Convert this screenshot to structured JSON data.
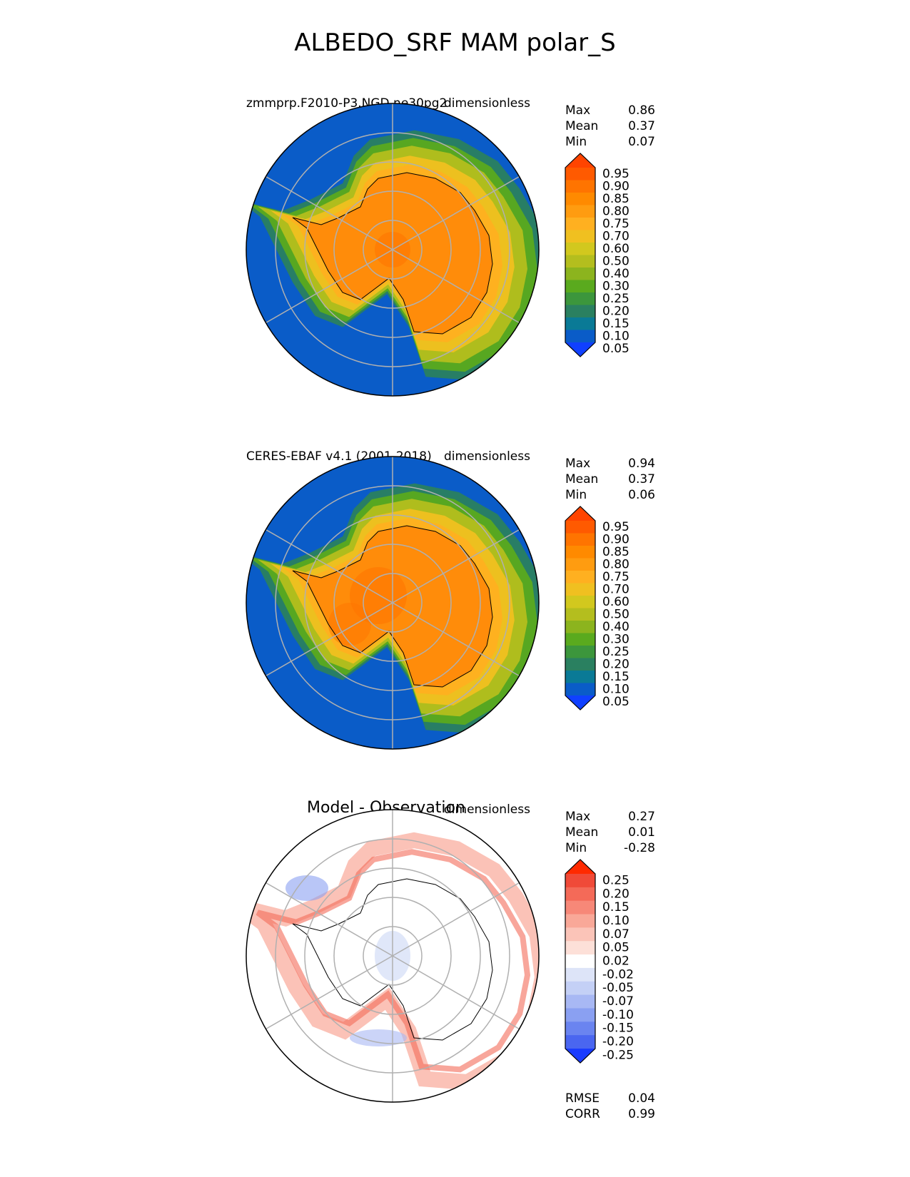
{
  "title": "ALBEDO_SRF MAM polar_S",
  "colors": {
    "ocean_blue": "#0a5cc8",
    "ice_orange": "#ff8c0a",
    "grid": "#b0b0b0"
  },
  "chart_data": [
    {
      "type": "polar-contour",
      "projection": "south-polar-stereographic",
      "left_label": "zmmprp.F2010-P3.NGD.ne30pg2",
      "right_label": "dimensionless",
      "center_label": "",
      "stats": [
        {
          "name": "Max",
          "value": "0.86"
        },
        {
          "name": "Mean",
          "value": "0.37"
        },
        {
          "name": "Min",
          "value": "0.07"
        }
      ],
      "colorbar": {
        "levels": [
          "0.95",
          "0.90",
          "0.85",
          "0.80",
          "0.75",
          "0.70",
          "0.60",
          "0.50",
          "0.40",
          "0.30",
          "0.25",
          "0.20",
          "0.15",
          "0.10",
          "0.05"
        ],
        "colors": [
          "#ff4400",
          "#ff5a00",
          "#ff7400",
          "#ff8a00",
          "#ff9c10",
          "#ffb020",
          "#f0c020",
          "#d2c81e",
          "#b4be1e",
          "#8cb41e",
          "#5aaa1e",
          "#3c963c",
          "#2a8060",
          "#0a7a96",
          "#0a5cc8",
          "#1040ff"
        ]
      },
      "field": "albedo"
    },
    {
      "type": "polar-contour",
      "projection": "south-polar-stereographic",
      "left_label": "CERES-EBAF v4.1 (2001-2018)",
      "right_label": "dimensionless",
      "center_label": "",
      "stats": [
        {
          "name": "Max",
          "value": "0.94"
        },
        {
          "name": "Mean",
          "value": "0.37"
        },
        {
          "name": "Min",
          "value": "0.06"
        }
      ],
      "colorbar": {
        "levels": [
          "0.95",
          "0.90",
          "0.85",
          "0.80",
          "0.75",
          "0.70",
          "0.60",
          "0.50",
          "0.40",
          "0.30",
          "0.25",
          "0.20",
          "0.15",
          "0.10",
          "0.05"
        ],
        "colors": [
          "#ff4400",
          "#ff5a00",
          "#ff7400",
          "#ff8a00",
          "#ff9c10",
          "#ffb020",
          "#f0c020",
          "#d2c81e",
          "#b4be1e",
          "#8cb41e",
          "#5aaa1e",
          "#3c963c",
          "#2a8060",
          "#0a7a96",
          "#0a5cc8",
          "#1040ff"
        ]
      },
      "field": "albedo"
    },
    {
      "type": "polar-contour",
      "projection": "south-polar-stereographic",
      "left_label": "",
      "right_label": "dimensionless",
      "center_label": "Model - Observation",
      "stats": [
        {
          "name": "Max",
          "value": "0.27"
        },
        {
          "name": "Mean",
          "value": "0.01"
        },
        {
          "name": "Min",
          "value": "-0.28"
        }
      ],
      "stats_bottom": [
        {
          "name": "RMSE",
          "value": "0.04"
        },
        {
          "name": "CORR",
          "value": "0.99"
        }
      ],
      "colorbar": {
        "levels": [
          "0.25",
          "0.20",
          "0.15",
          "0.10",
          "0.07",
          "0.05",
          "0.02",
          "-0.02",
          "-0.05",
          "-0.07",
          "-0.10",
          "-0.15",
          "-0.20",
          "-0.25"
        ],
        "colors": [
          "#ff2a00",
          "#f04a38",
          "#f46a58",
          "#f78878",
          "#f9a898",
          "#fbc4b8",
          "#fde0d8",
          "#ffffff",
          "#dde4f8",
          "#c4d0f6",
          "#a8b8f4",
          "#8aa0f2",
          "#6a84f0",
          "#4a66f0",
          "#1a3cff"
        ]
      },
      "field": "difference"
    }
  ]
}
